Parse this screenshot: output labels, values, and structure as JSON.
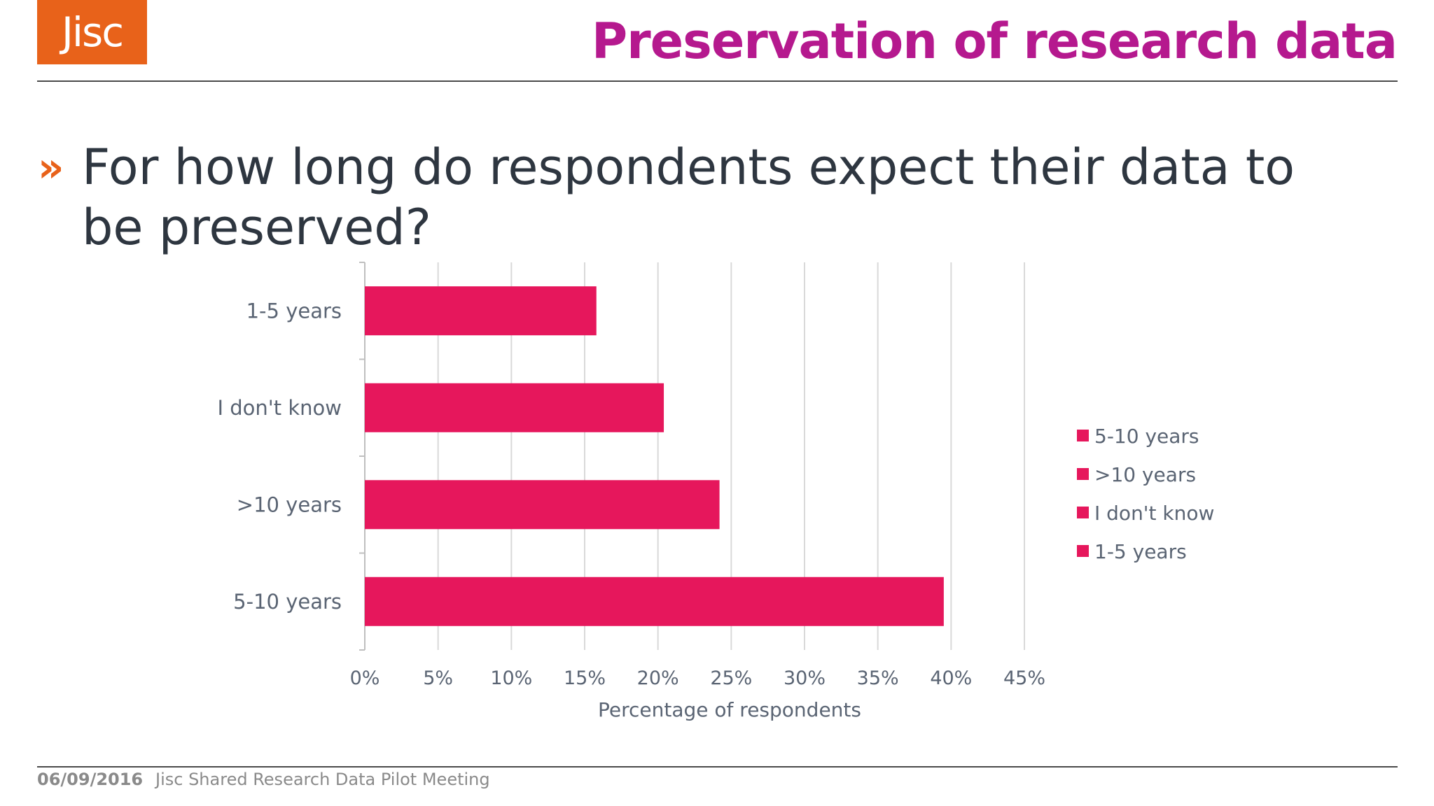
{
  "header": {
    "logo_text": "Jisc",
    "title": "Preservation of research data"
  },
  "question": {
    "bullet": "»",
    "text": "For how long do respondents expect their data to be preserved?"
  },
  "colors": {
    "brand_orange": "#e8621a",
    "title_magenta": "#b5198e",
    "bar": "#e6175c"
  },
  "chart_data": {
    "type": "bar",
    "orientation": "horizontal",
    "categories": [
      "1-5 years",
      "I don't know",
      ">10 years",
      "5-10 years"
    ],
    "values": [
      15.8,
      20.4,
      24.2,
      39.5
    ],
    "ylabel": "",
    "xlabel": "Percentage of respondents",
    "xlim": [
      0,
      45
    ],
    "xticks": [
      "0%",
      "5%",
      "10%",
      "15%",
      "20%",
      "25%",
      "30%",
      "35%",
      "40%",
      "45%"
    ],
    "grid": true,
    "legend": {
      "placement": "right",
      "entries": [
        "5-10 years",
        ">10 years",
        "I don't know",
        "1-5 years"
      ]
    }
  },
  "footer": {
    "date": "06/09/2016",
    "text": "Jisc Shared Research Data Pilot Meeting"
  }
}
